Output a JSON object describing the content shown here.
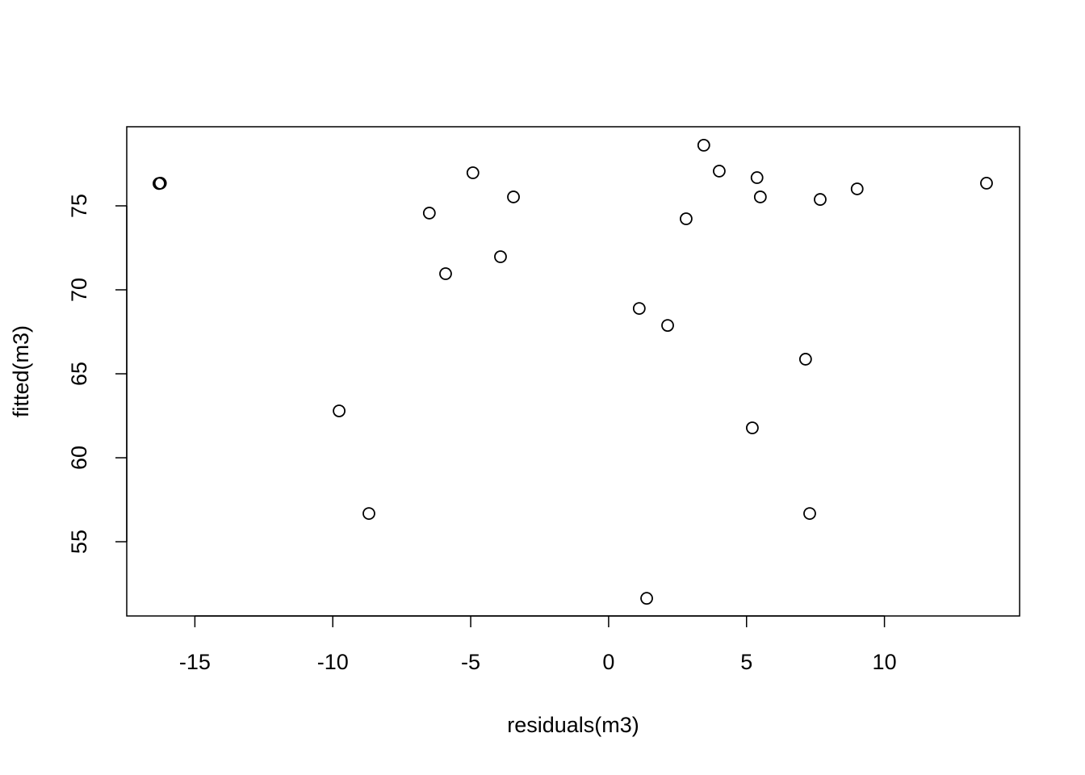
{
  "chart_data": {
    "type": "scatter",
    "x_label": "residuals(m3)",
    "y_label": "fitted(m3)",
    "x": [
      -16.3,
      -16.25,
      -4.92,
      -3.45,
      -6.5,
      -3.92,
      -5.91,
      -9.77,
      -8.69,
      3.45,
      4.01,
      5.38,
      5.5,
      2.81,
      7.67,
      9.01,
      13.7,
      1.11,
      2.14,
      7.14,
      5.21,
      7.29,
      1.38
    ],
    "values": [
      76.33,
      76.35,
      76.97,
      75.53,
      74.57,
      71.97,
      70.96,
      62.79,
      56.68,
      78.61,
      77.07,
      76.68,
      75.53,
      74.23,
      75.38,
      76.01,
      76.35,
      68.89,
      67.88,
      65.87,
      61.78,
      56.68,
      51.63
    ],
    "color": "#000000",
    "xlim": [
      -17.47,
      14.9
    ],
    "ylim": [
      50.58,
      79.71
    ],
    "xticks": [
      -15,
      -10,
      -5,
      0,
      5,
      10
    ],
    "yticks": [
      55,
      60,
      65,
      70,
      75
    ]
  }
}
